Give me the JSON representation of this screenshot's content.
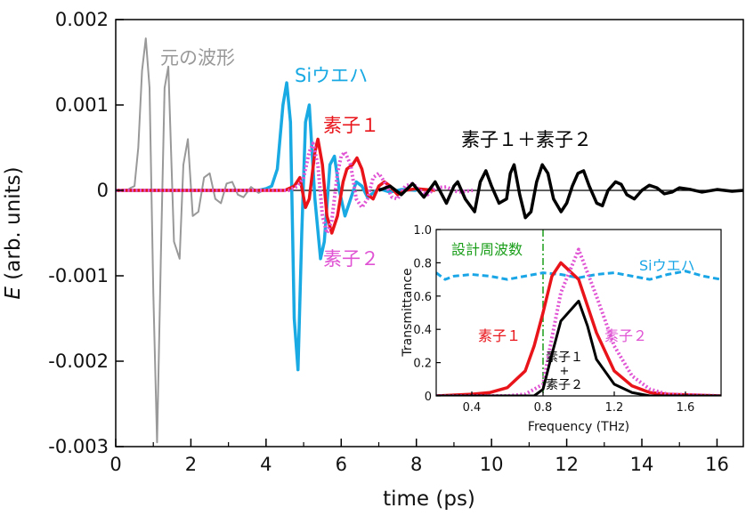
{
  "chart_data": [
    {
      "type": "line",
      "xlabel": "time (ps)",
      "ylabel_italic": "E",
      "ylabel_rest": " (arb. units)",
      "xlim": [
        0,
        16.7
      ],
      "ylim": [
        -0.003,
        0.002
      ],
      "xticks": [
        0,
        2,
        4,
        6,
        8,
        10,
        12,
        14,
        16
      ],
      "yticks": [
        {
          "v": 0.002,
          "label": "0.002"
        },
        {
          "v": 0.001,
          "label": "0.001"
        },
        {
          "v": 0,
          "label": "0"
        },
        {
          "v": -0.001,
          "label": "-0.001"
        },
        {
          "v": -0.002,
          "label": "-0.002"
        },
        {
          "v": -0.003,
          "label": "-0.003"
        }
      ],
      "grid": false,
      "series": [
        {
          "name": "元の波形",
          "color": "#999999",
          "style": "solid",
          "width": 2,
          "points": [
            [
              0,
              0
            ],
            [
              0.3,
              0
            ],
            [
              0.4,
              3e-05
            ],
            [
              0.5,
              5e-05
            ],
            [
              0.6,
              0.0005
            ],
            [
              0.7,
              0.0014
            ],
            [
              0.8,
              0.00178
            ],
            [
              0.9,
              0.0012
            ],
            [
              1.0,
              -0.0012
            ],
            [
              1.1,
              -0.00295
            ],
            [
              1.2,
              -0.0008
            ],
            [
              1.3,
              0.0012
            ],
            [
              1.4,
              0.00145
            ],
            [
              1.55,
              -0.0006
            ],
            [
              1.7,
              -0.0008
            ],
            [
              1.8,
              0.0003
            ],
            [
              1.92,
              0.0006
            ],
            [
              2.05,
              -0.0003
            ],
            [
              2.2,
              -0.00025
            ],
            [
              2.35,
              0.00015
            ],
            [
              2.5,
              0.0002
            ],
            [
              2.65,
              -0.0001
            ],
            [
              2.8,
              -0.00015
            ],
            [
              2.95,
              8e-05
            ],
            [
              3.1,
              0.0001
            ],
            [
              3.25,
              -5e-05
            ],
            [
              3.4,
              -8e-05
            ],
            [
              3.6,
              4e-05
            ],
            [
              3.8,
              -3e-05
            ],
            [
              4.0,
              2e-05
            ],
            [
              4.2,
              -1e-05
            ]
          ]
        },
        {
          "name": "Siウエハ",
          "color": "#19a9e3",
          "style": "solid",
          "width": 3.5,
          "points": [
            [
              0,
              0
            ],
            [
              3.8,
              0
            ],
            [
              4.0,
              2e-05
            ],
            [
              4.15,
              5e-05
            ],
            [
              4.3,
              0.00025
            ],
            [
              4.45,
              0.001
            ],
            [
              4.55,
              0.00126
            ],
            [
              4.65,
              0.0008
            ],
            [
              4.75,
              -0.0015
            ],
            [
              4.85,
              -0.0021
            ],
            [
              4.95,
              -0.0005
            ],
            [
              5.05,
              0.0008
            ],
            [
              5.15,
              0.001
            ],
            [
              5.3,
              -0.0001
            ],
            [
              5.45,
              -0.0008
            ],
            [
              5.55,
              -0.0006
            ],
            [
              5.7,
              0.0003
            ],
            [
              5.82,
              0.0004
            ],
            [
              5.95,
              0.0
            ],
            [
              6.1,
              -0.0003
            ],
            [
              6.25,
              -0.0001
            ],
            [
              6.4,
              0.0001
            ],
            [
              6.55,
              5e-05
            ],
            [
              6.7,
              -8e-05
            ],
            [
              6.85,
              -3e-05
            ],
            [
              7.0,
              2e-05
            ],
            [
              7.3,
              -2e-05
            ],
            [
              7.6,
              1e-05
            ],
            [
              8.0,
              0
            ]
          ]
        },
        {
          "name": "素子１",
          "color": "#e8141a",
          "style": "solid",
          "width": 3.5,
          "points": [
            [
              0,
              0
            ],
            [
              4.5,
              0
            ],
            [
              4.75,
              5e-05
            ],
            [
              4.9,
              0.00015
            ],
            [
              5.05,
              -0.0002
            ],
            [
              5.15,
              -0.0001
            ],
            [
              5.3,
              0.00045
            ],
            [
              5.38,
              0.0006
            ],
            [
              5.5,
              0.0003
            ],
            [
              5.62,
              -0.0003
            ],
            [
              5.75,
              -0.0005
            ],
            [
              5.9,
              -0.0003
            ],
            [
              6.05,
              0.0001
            ],
            [
              6.15,
              0.00025
            ],
            [
              6.3,
              0.0003
            ],
            [
              6.42,
              0.00038
            ],
            [
              6.55,
              0.00025
            ],
            [
              6.7,
              -5e-05
            ],
            [
              6.85,
              -0.0001
            ],
            [
              7.0,
              5e-05
            ],
            [
              7.15,
              0.0001
            ],
            [
              7.3,
              5e-05
            ],
            [
              7.5,
              -5e-05
            ],
            [
              7.7,
              0
            ],
            [
              8.0,
              2e-05
            ],
            [
              8.5,
              0
            ]
          ]
        },
        {
          "name": "素子２",
          "color": "#e054d4",
          "style": "dotted",
          "width": 4,
          "points": [
            [
              0,
              0
            ],
            [
              4.6,
              0
            ],
            [
              4.85,
              5e-05
            ],
            [
              5.0,
              0.00015
            ],
            [
              5.15,
              0.00045
            ],
            [
              5.25,
              0.00055
            ],
            [
              5.38,
              0.0003
            ],
            [
              5.5,
              -0.0003
            ],
            [
              5.62,
              -0.0005
            ],
            [
              5.75,
              -0.00035
            ],
            [
              5.9,
              0.0002
            ],
            [
              6.0,
              0.0004
            ],
            [
              6.1,
              0.00045
            ],
            [
              6.25,
              0.0003
            ],
            [
              6.4,
              -0.0001
            ],
            [
              6.55,
              -0.0002
            ],
            [
              6.7,
              -0.0001
            ],
            [
              6.85,
              0.00015
            ],
            [
              7.0,
              0.0002
            ],
            [
              7.15,
              0.0001
            ],
            [
              7.35,
              -8e-05
            ],
            [
              7.5,
              -0.0001
            ],
            [
              7.7,
              5e-05
            ],
            [
              7.9,
              8e-05
            ],
            [
              8.1,
              0
            ],
            [
              8.3,
              -5e-05
            ],
            [
              8.5,
              3e-05
            ],
            [
              8.8,
              4e-05
            ],
            [
              9.1,
              -2e-05
            ],
            [
              9.5,
              0
            ]
          ]
        },
        {
          "name": "素子１＋素子２",
          "color": "#000000",
          "style": "solid",
          "width": 3.5,
          "points": [
            [
              7.0,
              0
            ],
            [
              7.3,
              5e-05
            ],
            [
              7.6,
              -5e-05
            ],
            [
              7.9,
              8e-05
            ],
            [
              8.2,
              -8e-05
            ],
            [
              8.5,
              0.0001
            ],
            [
              8.8,
              -0.00015
            ],
            [
              9.0,
              5e-05
            ],
            [
              9.1,
              0.0001
            ],
            [
              9.3,
              -0.0001
            ],
            [
              9.55,
              -0.00025
            ],
            [
              9.7,
              0.0001
            ],
            [
              9.85,
              0.00023
            ],
            [
              10.0,
              5e-05
            ],
            [
              10.2,
              -0.00015
            ],
            [
              10.4,
              -0.0001
            ],
            [
              10.5,
              0.0002
            ],
            [
              10.6,
              0.0003
            ],
            [
              10.75,
              -5e-05
            ],
            [
              10.9,
              -0.00032
            ],
            [
              11.05,
              -0.00025
            ],
            [
              11.2,
              0.0001
            ],
            [
              11.35,
              0.0003
            ],
            [
              11.5,
              0.0002
            ],
            [
              11.65,
              -0.0001
            ],
            [
              11.85,
              -0.00025
            ],
            [
              12.0,
              -0.00015
            ],
            [
              12.15,
              5e-05
            ],
            [
              12.3,
              0.0002
            ],
            [
              12.45,
              0.00023
            ],
            [
              12.6,
              5e-05
            ],
            [
              12.8,
              -0.00015
            ],
            [
              12.95,
              -0.00018
            ],
            [
              13.1,
              0
            ],
            [
              13.3,
              0.0001
            ],
            [
              13.45,
              7e-05
            ],
            [
              13.6,
              -5e-05
            ],
            [
              13.8,
              -0.0001
            ],
            [
              14.0,
              0
            ],
            [
              14.2,
              6e-05
            ],
            [
              14.4,
              3e-05
            ],
            [
              14.6,
              -4e-05
            ],
            [
              14.8,
              -2e-05
            ],
            [
              15.0,
              3e-05
            ],
            [
              15.3,
              1e-05
            ],
            [
              15.6,
              -2e-05
            ],
            [
              16.0,
              1e-05
            ],
            [
              16.4,
              -1e-05
            ],
            [
              16.7,
              0
            ]
          ]
        }
      ],
      "annotations": [
        {
          "text": "元の波形",
          "color": "#999999",
          "x": 1.3,
          "y": 0.0015
        },
        {
          "text": "Siウエハ",
          "color": "#19a9e3",
          "x": 5.0,
          "y": 0.00125
        },
        {
          "text": "素子１",
          "color": "#e8141a",
          "x": 5.6,
          "y": 0.0007
        },
        {
          "text": "素子２",
          "color": "#e054d4",
          "x": 5.6,
          "y": -0.00085
        },
        {
          "text": "素子１＋素子２",
          "color": "#000000",
          "x": 9.6,
          "y": 0.00055
        }
      ]
    },
    {
      "type": "line",
      "xlabel": "Frequency (THz)",
      "ylabel": "Transmittance",
      "xlim": [
        0.2,
        1.8
      ],
      "ylim": [
        0,
        1.0
      ],
      "xticks": [
        0.4,
        0.8,
        1.2,
        1.6
      ],
      "xtick_labels": [
        "0.4",
        "0.8",
        "1.2",
        "1.6"
      ],
      "yticks": [
        0,
        0.2,
        0.4,
        0.6,
        0.8,
        1.0
      ],
      "ytick_labels": [
        "0",
        "0.2",
        "0.4",
        "0.6",
        "0.8",
        "1.0"
      ],
      "grid": false,
      "design_frequency": {
        "label": "設計周波数",
        "x": 0.8,
        "color": "#1a9e1a"
      },
      "series": [
        {
          "name": "Siウエハ",
          "color": "#1aa6e6",
          "style": "dashed",
          "width": 3,
          "points": [
            [
              0.2,
              0.74
            ],
            [
              0.25,
              0.7
            ],
            [
              0.3,
              0.72
            ],
            [
              0.4,
              0.73
            ],
            [
              0.5,
              0.72
            ],
            [
              0.6,
              0.7
            ],
            [
              0.7,
              0.72
            ],
            [
              0.8,
              0.74
            ],
            [
              0.9,
              0.73
            ],
            [
              1.0,
              0.71
            ],
            [
              1.1,
              0.73
            ],
            [
              1.2,
              0.74
            ],
            [
              1.3,
              0.72
            ],
            [
              1.4,
              0.7
            ],
            [
              1.5,
              0.73
            ],
            [
              1.6,
              0.75
            ],
            [
              1.7,
              0.72
            ],
            [
              1.8,
              0.7
            ]
          ]
        },
        {
          "name": "素子１",
          "color": "#e8141a",
          "style": "solid",
          "width": 3.5,
          "points": [
            [
              0.2,
              0
            ],
            [
              0.4,
              0.01
            ],
            [
              0.5,
              0.02
            ],
            [
              0.6,
              0.05
            ],
            [
              0.7,
              0.15
            ],
            [
              0.75,
              0.3
            ],
            [
              0.8,
              0.5
            ],
            [
              0.85,
              0.72
            ],
            [
              0.9,
              0.8
            ],
            [
              1.0,
              0.7
            ],
            [
              1.1,
              0.38
            ],
            [
              1.2,
              0.15
            ],
            [
              1.3,
              0.06
            ],
            [
              1.4,
              0.02
            ],
            [
              1.5,
              0.01
            ],
            [
              1.8,
              0
            ]
          ]
        },
        {
          "name": "素子２",
          "color": "#e054d4",
          "style": "dotted",
          "width": 4,
          "points": [
            [
              0.2,
              0
            ],
            [
              0.6,
              0
            ],
            [
              0.7,
              0.01
            ],
            [
              0.8,
              0.07
            ],
            [
              0.85,
              0.35
            ],
            [
              0.9,
              0.62
            ],
            [
              1.0,
              0.88
            ],
            [
              1.1,
              0.6
            ],
            [
              1.2,
              0.3
            ],
            [
              1.3,
              0.12
            ],
            [
              1.4,
              0.04
            ],
            [
              1.5,
              0.01
            ],
            [
              1.8,
              0
            ]
          ]
        },
        {
          "name": "素子１＋素子２",
          "color": "#000000",
          "style": "solid",
          "width": 3,
          "points": [
            [
              0.2,
              0
            ],
            [
              0.75,
              0
            ],
            [
              0.8,
              0.04
            ],
            [
              0.85,
              0.25
            ],
            [
              0.9,
              0.45
            ],
            [
              1.0,
              0.57
            ],
            [
              1.05,
              0.42
            ],
            [
              1.1,
              0.22
            ],
            [
              1.2,
              0.07
            ],
            [
              1.3,
              0.02
            ],
            [
              1.4,
              0
            ],
            [
              1.8,
              0
            ]
          ]
        }
      ],
      "annotations": [
        {
          "text": "Siウエハ",
          "color": "#1aa6e6"
        },
        {
          "text": "素子１",
          "color": "#e8141a"
        },
        {
          "text": "素子２",
          "color": "#e054d4"
        },
        {
          "text": "素子１",
          "color": "#000000"
        },
        {
          "text": "+",
          "color": "#000000"
        },
        {
          "text": "素子２",
          "color": "#000000"
        }
      ]
    }
  ]
}
